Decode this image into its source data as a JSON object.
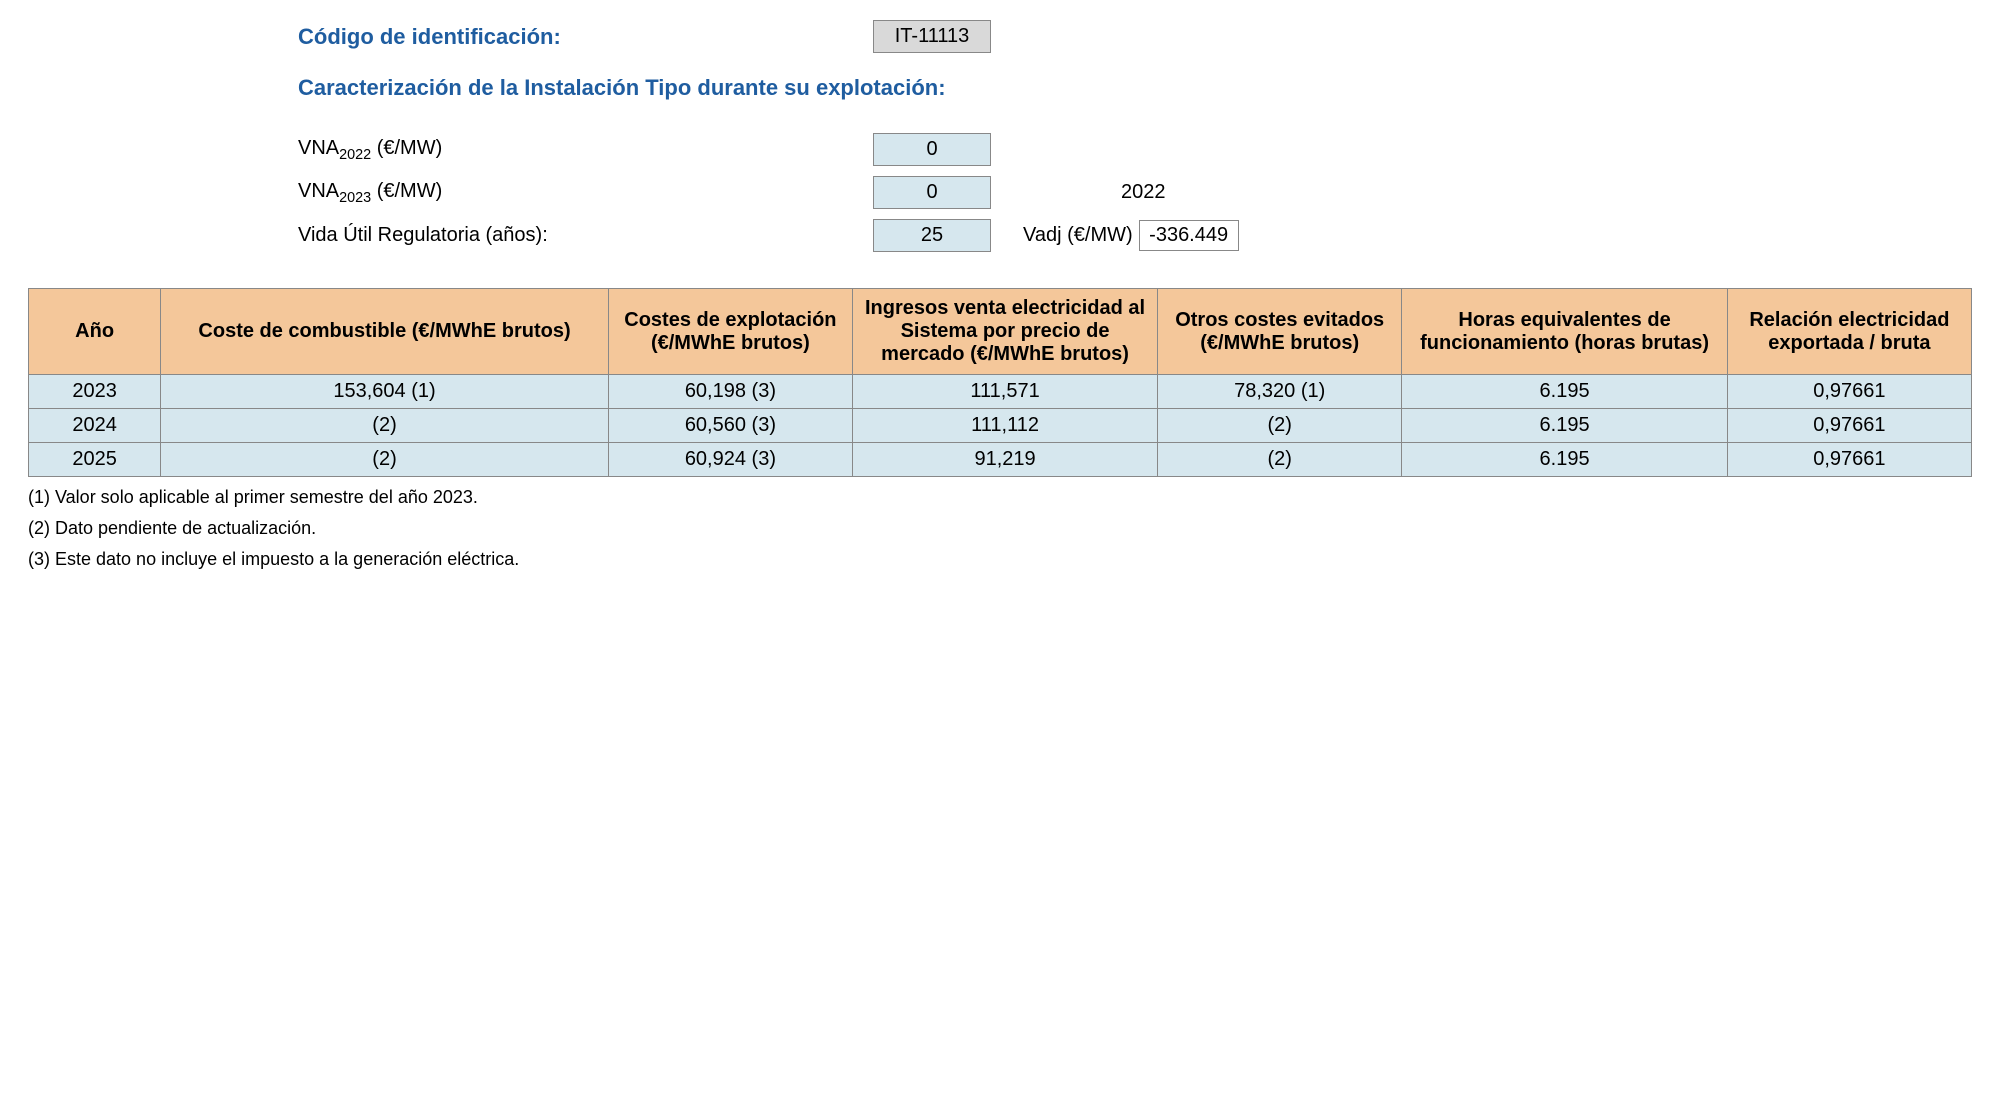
{
  "header": {
    "codigo_label": "Código de identificación:",
    "codigo_value": "IT-11113",
    "caracterizacion_label": "Caracterización de la Instalación Tipo durante su explotación:"
  },
  "params": {
    "vna2022": {
      "label_prefix": "VNA",
      "label_sub": "2022",
      "label_suffix": " (€/MW)",
      "value": "0"
    },
    "vna2023": {
      "label_prefix": "VNA",
      "label_sub": "2023",
      "label_suffix": " (€/MW)",
      "value": "0"
    },
    "vida": {
      "label": "Vida Útil Regulatoria (años):",
      "value": "25"
    },
    "year_label": "2022",
    "vadj": {
      "label": "Vadj (€/MW)",
      "value": "-336.449"
    }
  },
  "table": {
    "columns": [
      "Año",
      "Coste de combustible (€/MWhE brutos)",
      "Costes de explotación (€/MWhE brutos)",
      "Ingresos venta electricidad al Sistema por precio de mercado (€/MWhE brutos)",
      "Otros costes evitados (€/MWhE brutos)",
      "Horas equivalentes de funcionamiento (horas brutas)",
      "Relación electricidad exportada / bruta"
    ],
    "col_classes": [
      "col-ano",
      "col-fuel",
      "col-op",
      "col-inc",
      "col-oth",
      "col-hrs",
      "col-rel"
    ],
    "rows": [
      [
        "2023",
        "153,604 (1)",
        "60,198 (3)",
        "111,571",
        "78,320 (1)",
        "6.195",
        "0,97661"
      ],
      [
        "2024",
        "(2)",
        "60,560 (3)",
        "111,112",
        "(2)",
        "6.195",
        "0,97661"
      ],
      [
        "2025",
        "(2)",
        "60,924 (3)",
        "91,219",
        "(2)",
        "6.195",
        "0,97661"
      ]
    ]
  },
  "footnotes": [
    "(1) Valor solo aplicable al primer semestre del año 2023.",
    "(2) Dato pendiente de actualización.",
    "(3) Este dato no incluye el impuesto a la generación eléctrica."
  ],
  "colors": {
    "heading": "#1f5da0",
    "header_bg": "#f4c79a",
    "cell_bg": "#d6e7ee",
    "box_gray": "#d9d9d9",
    "border": "#888888"
  }
}
